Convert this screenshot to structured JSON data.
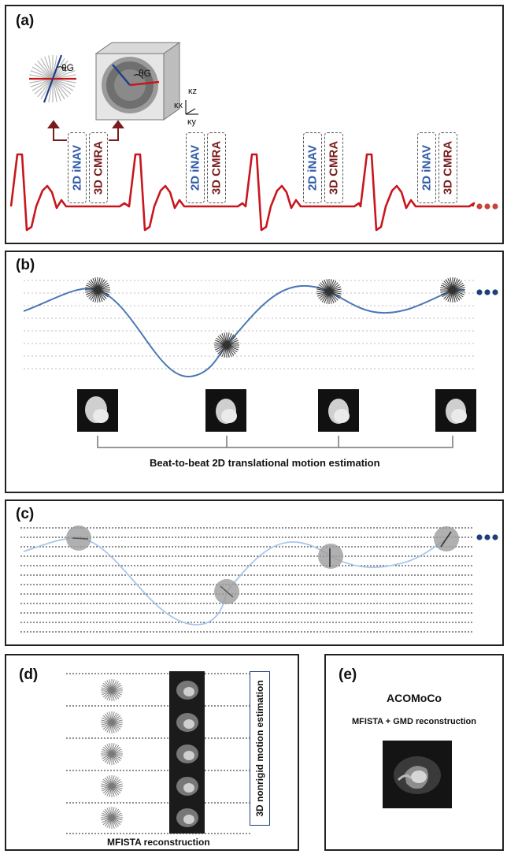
{
  "panels": {
    "a": {
      "label": "(a)",
      "theta_label": "θG",
      "kspace_axes": {
        "kz": "κz",
        "kx": "κx",
        "ky": "κy"
      },
      "box_labels": {
        "inav": "2D iNAV",
        "cmra": "3D CMRA"
      }
    },
    "b": {
      "label": "(b)",
      "caption": "Beat-to-beat 2D translational motion estimation"
    },
    "c": {
      "label": "(c)"
    },
    "d": {
      "label": "(d)",
      "vertical_box": "3D nonrigid motion estimation",
      "caption": "MFISTA reconstruction"
    },
    "e": {
      "label": "(e)",
      "title": "ACOMoCo",
      "subtitle": "MFISTA + GMD reconstruction"
    }
  },
  "colors": {
    "ecg": "#c8161d",
    "respiratory_b": "#4a78b5",
    "respiratory_c": "#a9c7ea",
    "inav_text": "#2f5aa8",
    "cmra_text": "#7a1c1c",
    "ellipsis_a": "#c9413b",
    "ellipsis_bc": "#1f3f7a"
  }
}
